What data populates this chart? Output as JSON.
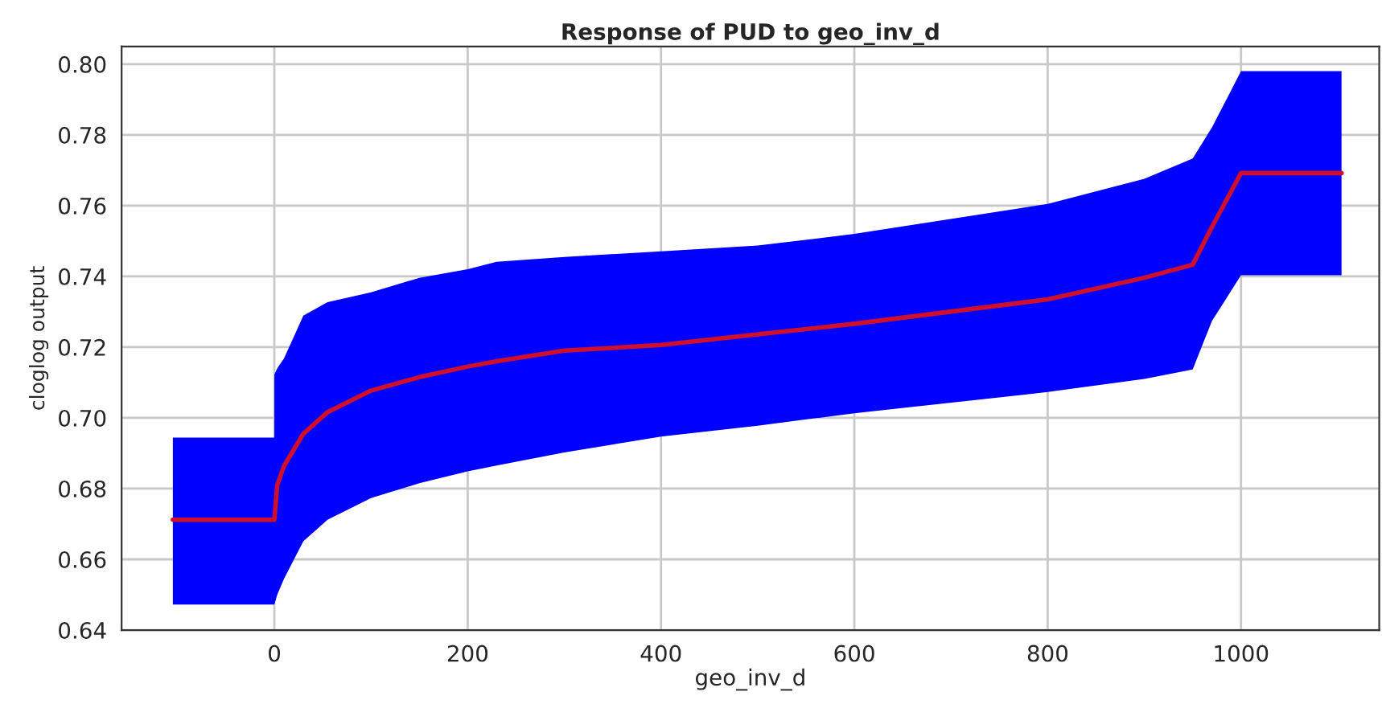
{
  "chart_data": {
    "type": "line",
    "title": "Response of PUD to geo_inv_d",
    "xlabel": "geo_inv_d",
    "ylabel": "cloglog output",
    "x": [
      -105,
      0,
      0,
      3,
      10,
      30,
      55,
      100,
      150,
      200,
      230,
      300,
      400,
      500,
      600,
      800,
      900,
      950,
      970,
      1000,
      1104
    ],
    "series": [
      {
        "color": "#d0102a",
        "values": [
          0.6712,
          0.6712,
          0.6712,
          0.681,
          0.6864,
          0.6955,
          0.7016,
          0.7077,
          0.7115,
          0.7145,
          0.716,
          0.719,
          0.7206,
          0.7236,
          0.7266,
          0.7335,
          0.7396,
          0.7433,
          0.754,
          0.7692,
          0.7692
        ],
        "upper": [
          0.6944,
          0.6944,
          0.7122,
          0.714,
          0.7168,
          0.7289,
          0.7327,
          0.7355,
          0.7396,
          0.742,
          0.7441,
          0.7455,
          0.7471,
          0.7487,
          0.752,
          0.7605,
          0.7676,
          0.7733,
          0.7821,
          0.798,
          0.798
        ],
        "lower": [
          0.6472,
          0.6472,
          0.6472,
          0.65,
          0.6545,
          0.6651,
          0.6712,
          0.6773,
          0.6815,
          0.6849,
          0.6865,
          0.6902,
          0.6947,
          0.6978,
          0.7013,
          0.7073,
          0.711,
          0.7137,
          0.7274,
          0.7403,
          0.7403
        ]
      }
    ],
    "xlim": [
      -158,
      1143
    ],
    "ylim": [
      0.64,
      0.805
    ],
    "xticks": [
      0,
      200,
      400,
      600,
      800,
      1000
    ],
    "yticks": [
      {
        "value": 0.64,
        "label": "0.64"
      },
      {
        "value": 0.66,
        "label": "0.66"
      },
      {
        "value": 0.68,
        "label": "0.68"
      },
      {
        "value": 0.7,
        "label": "0.70"
      },
      {
        "value": 0.72,
        "label": "0.72"
      },
      {
        "value": 0.74,
        "label": "0.74"
      },
      {
        "value": 0.76,
        "label": "0.76"
      },
      {
        "value": 0.78,
        "label": "0.78"
      },
      {
        "value": 0.8,
        "label": "0.80"
      }
    ],
    "grid": true
  }
}
